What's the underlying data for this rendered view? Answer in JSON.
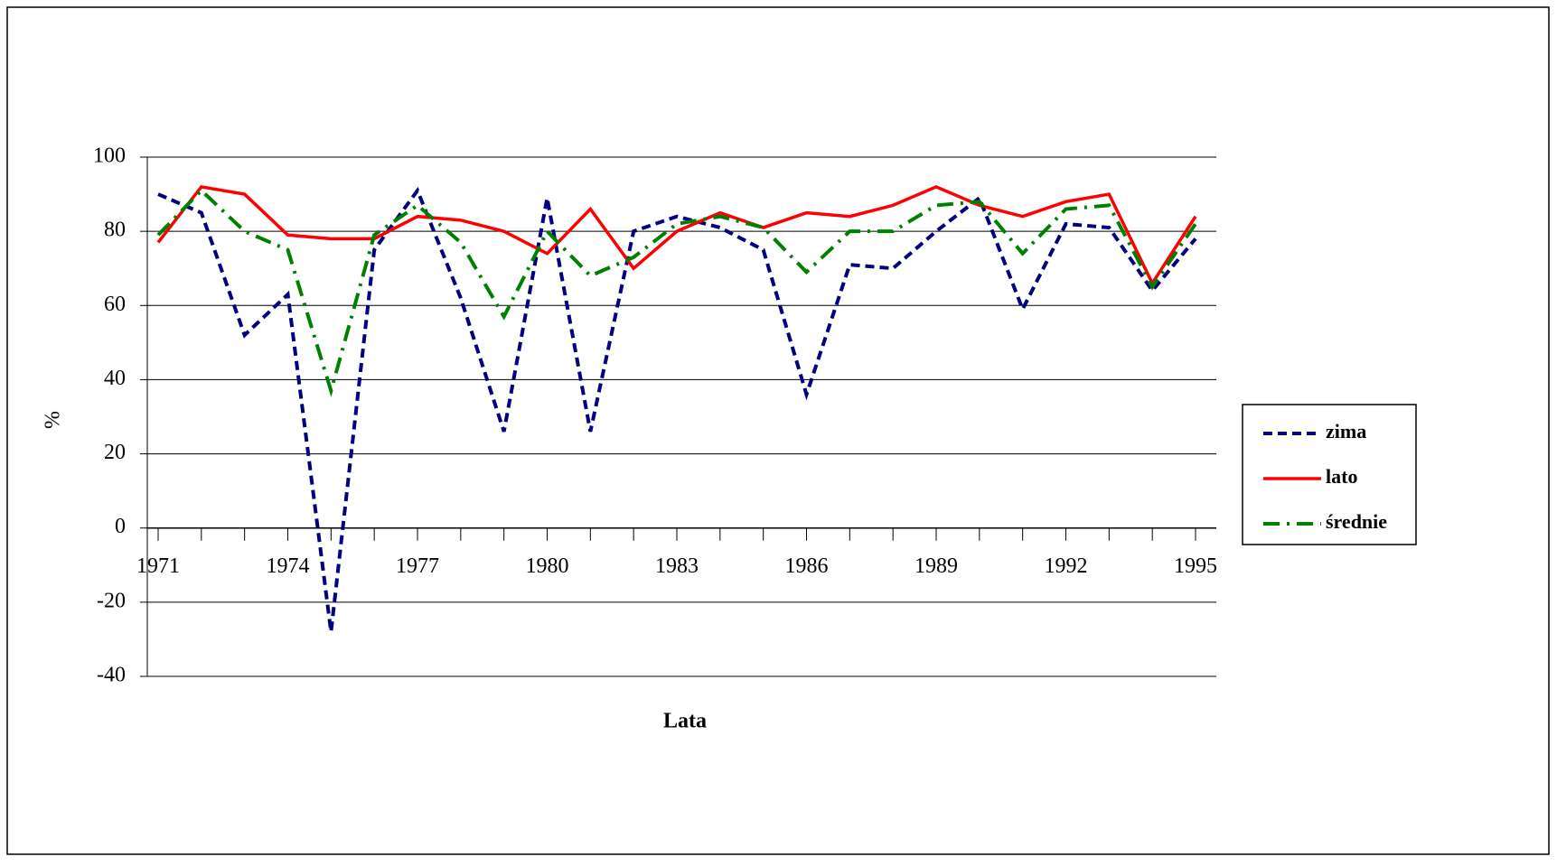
{
  "chart_data": {
    "type": "line",
    "x": [
      1971,
      1972,
      1973,
      1974,
      1975,
      1976,
      1977,
      1978,
      1979,
      1980,
      1981,
      1982,
      1983,
      1984,
      1985,
      1986,
      1987,
      1988,
      1989,
      1990,
      1991,
      1992,
      1993,
      1994,
      1995
    ],
    "series": [
      {
        "name": "zima",
        "color": "#000080",
        "dash": "dashed",
        "values": [
          90,
          85,
          52,
          63,
          -28,
          75,
          91,
          62,
          26,
          89,
          26,
          80,
          84,
          81,
          75,
          36,
          71,
          70,
          80,
          89,
          59,
          82,
          81,
          64,
          78
        ]
      },
      {
        "name": "lato",
        "color": "#ff0000",
        "dash": "solid",
        "values": [
          77,
          92,
          90,
          79,
          78,
          78,
          84,
          83,
          80,
          74,
          86,
          70,
          80,
          85,
          81,
          85,
          84,
          87,
          92,
          87,
          84,
          88,
          90,
          66,
          84
        ]
      },
      {
        "name": "średnie",
        "color": "#008000",
        "dash": "dashdot",
        "values": [
          79,
          91,
          80,
          75,
          37,
          79,
          87,
          77,
          57,
          80,
          68,
          73,
          82,
          84,
          81,
          69,
          80,
          80,
          87,
          88,
          74,
          86,
          87,
          65,
          82
        ]
      }
    ],
    "xlabel": "Lata",
    "ylabel": "%",
    "xlim": [
      1971,
      1995
    ],
    "xticks": [
      1971,
      1974,
      1977,
      1980,
      1983,
      1986,
      1989,
      1992,
      1995
    ],
    "ylim": [
      -40,
      100
    ],
    "yticks": [
      -40,
      -20,
      0,
      20,
      40,
      60,
      80,
      100
    ],
    "grid": true,
    "legend": "right"
  }
}
